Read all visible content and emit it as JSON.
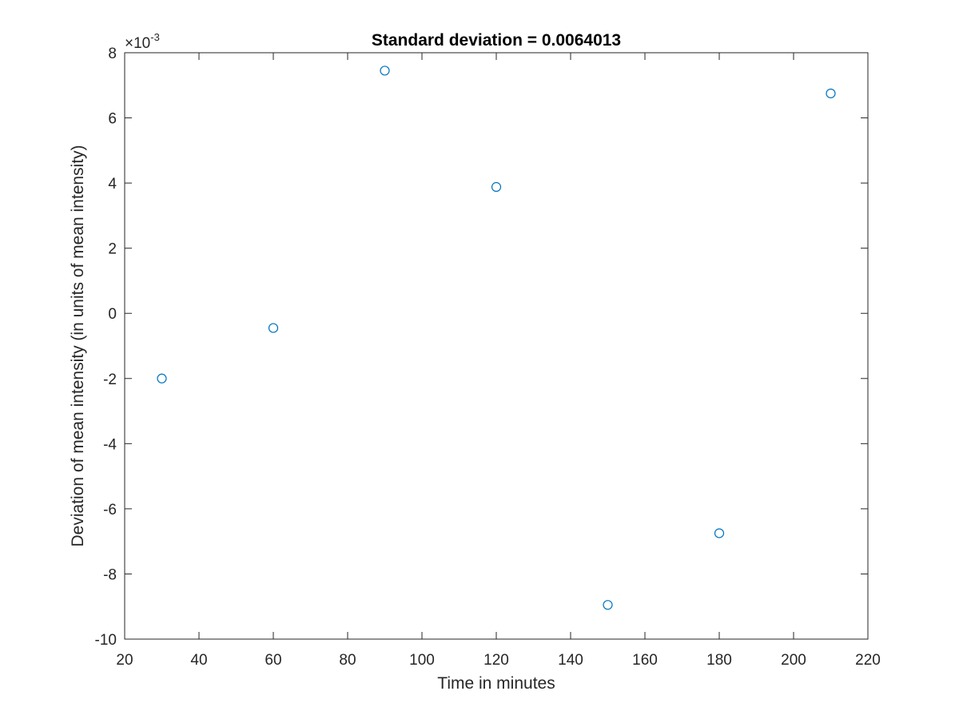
{
  "chart_data": {
    "type": "scatter",
    "title": "Standard deviation = 0.0064013",
    "xlabel": "Time in minutes",
    "ylabel": "Deviation of mean intensity (in units of mean intensity)",
    "xlim": [
      20,
      220
    ],
    "ylim": [
      -10,
      8
    ],
    "y_exponent_label": {
      "base": "×10",
      "power": "-3"
    },
    "x_ticks": [
      20,
      40,
      60,
      80,
      100,
      120,
      140,
      160,
      180,
      200,
      220
    ],
    "y_ticks": [
      -10,
      -8,
      -6,
      -4,
      -2,
      0,
      2,
      4,
      6,
      8
    ],
    "x_tick_labels": [
      "20",
      "40",
      "60",
      "80",
      "100",
      "120",
      "140",
      "160",
      "180",
      "200",
      "220"
    ],
    "y_tick_labels": [
      "-10",
      "-8",
      "-6",
      "-4",
      "-2",
      "0",
      "2",
      "4",
      "6",
      "8"
    ],
    "grid": false,
    "box": true,
    "marker": "circle-open",
    "marker_color": "#0072BD",
    "axis_color": "#262626",
    "series": [
      {
        "x": [
          30,
          60,
          90,
          120,
          150,
          180,
          210
        ],
        "y": [
          -2.0,
          -0.45,
          7.45,
          3.88,
          -8.95,
          -6.75,
          6.75
        ]
      }
    ]
  }
}
